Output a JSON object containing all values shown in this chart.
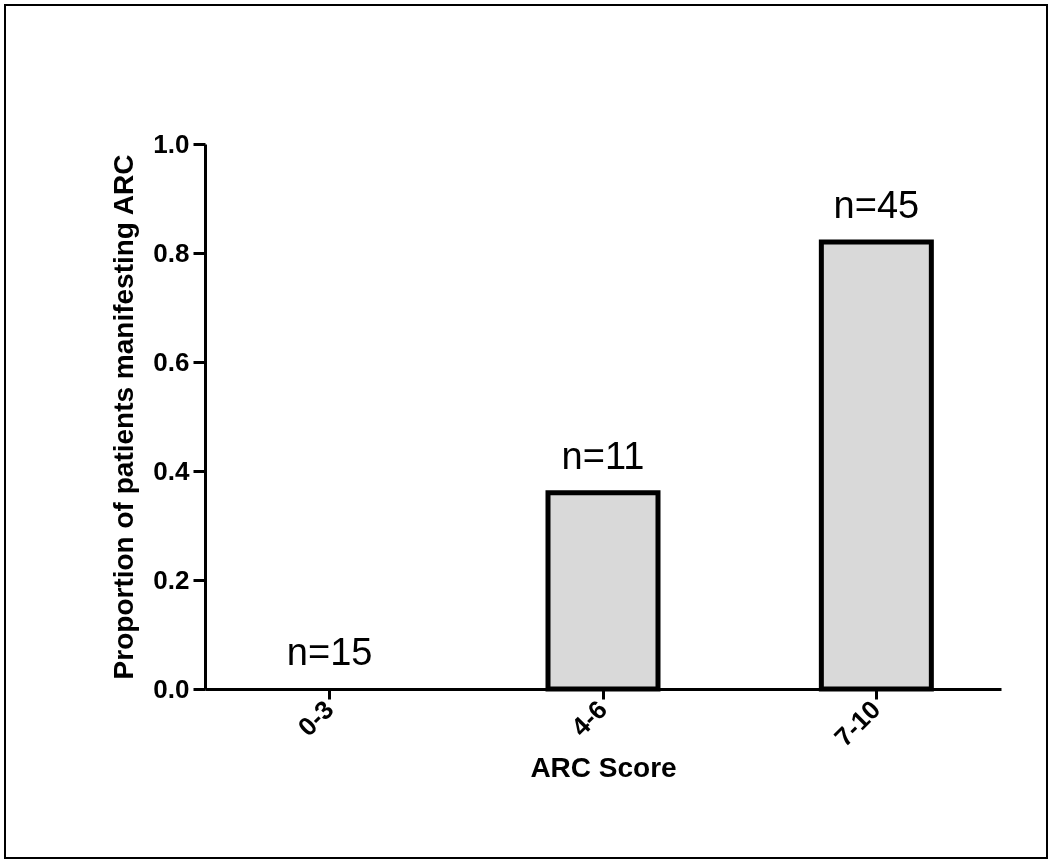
{
  "chart_data": {
    "type": "bar",
    "xlabel": "ARC Score",
    "ylabel": "Proportion of patients manifesting ARC",
    "categories": [
      "0-3",
      "4-6",
      "7-10"
    ],
    "values": [
      0,
      0.36,
      0.82
    ],
    "color": "#d9d9d9",
    "ylim": [
      0,
      1
    ],
    "yticks": [
      {
        "value": 0,
        "label": "0.0"
      },
      {
        "value": 0.2,
        "label": "0.2"
      },
      {
        "value": 0.4,
        "label": "0.4"
      },
      {
        "value": 0.6,
        "label": "0.6"
      },
      {
        "value": 0.8,
        "label": "0.8"
      },
      {
        "value": 1,
        "label": "1.0"
      }
    ],
    "grid": false,
    "annotations": [
      {
        "text": "n=15",
        "x": "0-3",
        "y": 0
      },
      {
        "text": "n=11",
        "x": "4-6",
        "y": 0.36
      },
      {
        "text": "n=45",
        "x": "7-10",
        "y": 0.82
      }
    ]
  }
}
